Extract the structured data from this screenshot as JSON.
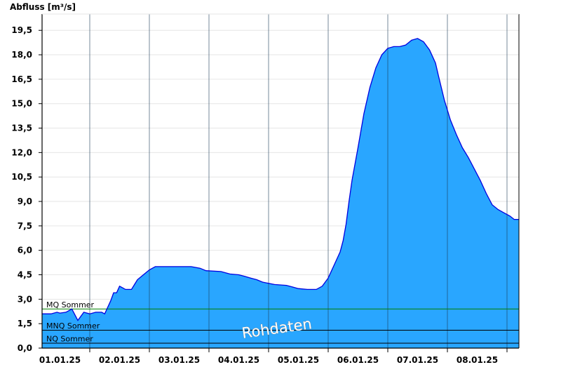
{
  "chart_data": {
    "type": "area",
    "ylabel": "Abfluss [m³/s]",
    "ylim": [
      0,
      20.5
    ],
    "yticks": [
      "0,0",
      "1,5",
      "3,0",
      "4,5",
      "6,0",
      "7,5",
      "9,0",
      "10,5",
      "12,0",
      "13,5",
      "15,0",
      "16,5",
      "18,0",
      "19,5"
    ],
    "x_day_labels": [
      "01.01.25",
      "02.01.25",
      "03.01.25",
      "04.01.25",
      "05.01.25",
      "06.01.25",
      "07.01.25",
      "08.01.25"
    ],
    "xlim_days": [
      -0.3,
      7.7
    ],
    "grid": true,
    "series": [
      {
        "values_by_day": [
          [
            -0.3,
            2.1
          ],
          [
            -0.15,
            2.1
          ],
          [
            -0.05,
            2.2
          ],
          [
            0.0,
            2.15
          ],
          [
            0.1,
            2.2
          ],
          [
            0.2,
            2.4
          ],
          [
            0.3,
            1.7
          ],
          [
            0.4,
            2.2
          ],
          [
            0.5,
            2.1
          ],
          [
            0.6,
            2.2
          ],
          [
            0.7,
            2.2
          ],
          [
            0.75,
            2.1
          ],
          [
            0.8,
            2.5
          ],
          [
            0.85,
            2.9
          ],
          [
            0.9,
            3.4
          ],
          [
            0.95,
            3.4
          ],
          [
            1.0,
            3.8
          ],
          [
            1.05,
            3.7
          ],
          [
            1.1,
            3.6
          ],
          [
            1.2,
            3.6
          ],
          [
            1.25,
            3.9
          ],
          [
            1.3,
            4.2
          ],
          [
            1.4,
            4.5
          ],
          [
            1.5,
            4.8
          ],
          [
            1.6,
            5.0
          ],
          [
            1.8,
            5.0
          ],
          [
            2.0,
            5.0
          ],
          [
            2.2,
            5.0
          ],
          [
            2.35,
            4.9
          ],
          [
            2.45,
            4.75
          ],
          [
            2.7,
            4.7
          ],
          [
            2.85,
            4.55
          ],
          [
            3.0,
            4.5
          ],
          [
            3.1,
            4.4
          ],
          [
            3.2,
            4.3
          ],
          [
            3.3,
            4.2
          ],
          [
            3.4,
            4.05
          ],
          [
            3.6,
            3.9
          ],
          [
            3.8,
            3.85
          ],
          [
            3.9,
            3.75
          ],
          [
            4.0,
            3.65
          ],
          [
            4.15,
            3.6
          ],
          [
            4.3,
            3.6
          ],
          [
            4.4,
            3.8
          ],
          [
            4.5,
            4.3
          ],
          [
            4.6,
            5.1
          ],
          [
            4.7,
            5.9
          ],
          [
            4.75,
            6.6
          ],
          [
            4.8,
            7.6
          ],
          [
            4.85,
            9.0
          ],
          [
            4.9,
            10.3
          ],
          [
            5.0,
            12.3
          ],
          [
            5.1,
            14.4
          ],
          [
            5.2,
            16.0
          ],
          [
            5.3,
            17.2
          ],
          [
            5.4,
            18.0
          ],
          [
            5.5,
            18.4
          ],
          [
            5.6,
            18.5
          ],
          [
            5.7,
            18.5
          ],
          [
            5.8,
            18.6
          ],
          [
            5.9,
            18.9
          ],
          [
            6.0,
            19.0
          ],
          [
            6.1,
            18.8
          ],
          [
            6.2,
            18.3
          ],
          [
            6.3,
            17.5
          ],
          [
            6.35,
            16.7
          ],
          [
            6.45,
            15.2
          ],
          [
            6.55,
            14.0
          ],
          [
            6.65,
            13.1
          ],
          [
            6.75,
            12.3
          ],
          [
            6.85,
            11.7
          ],
          [
            6.95,
            11.0
          ],
          [
            7.05,
            10.3
          ],
          [
            7.15,
            9.5
          ],
          [
            7.25,
            8.8
          ],
          [
            7.35,
            8.5
          ],
          [
            7.45,
            8.3
          ],
          [
            7.55,
            8.1
          ],
          [
            7.62,
            7.9
          ],
          [
            7.7,
            7.9
          ]
        ],
        "color": "#29a6ff",
        "line_color": "#0000e0"
      }
    ],
    "reference_lines": [
      {
        "label": "MQ Sommer",
        "value": 2.4,
        "color": "#008000"
      },
      {
        "label": "MNQ Sommer",
        "value": 1.1,
        "color": "#000000"
      },
      {
        "label": "NQ Sommer",
        "value": 0.3,
        "color": "#000000"
      }
    ],
    "annotation": "Rohdaten"
  }
}
